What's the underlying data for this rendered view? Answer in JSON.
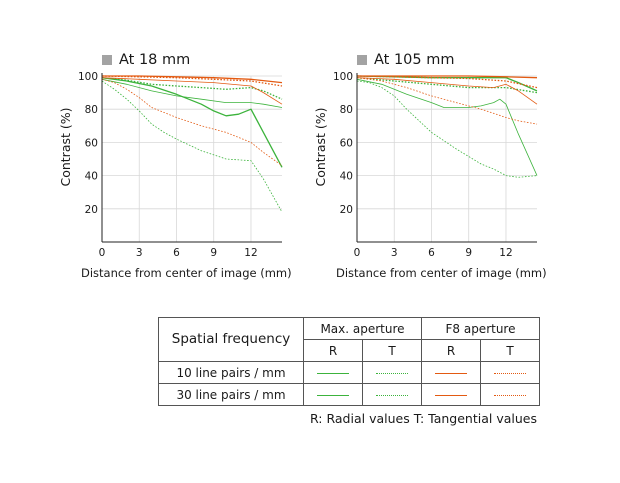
{
  "colors": {
    "max_aperture": "#3cb33c",
    "f8_aperture": "#e35a12",
    "axis": "#222222",
    "grid": "#d8d8d8",
    "title_square": "#a3a3a3"
  },
  "chart_data": [
    {
      "type": "line",
      "title": "At 18 mm",
      "xlabel": "Distance from center of image (mm)",
      "ylabel": "Contrast (%)",
      "xlim": [
        0,
        14.5
      ],
      "ylim": [
        0,
        100
      ],
      "xticks": [
        0,
        3,
        6,
        9,
        12
      ],
      "yticks": [
        20,
        40,
        60,
        80,
        100
      ],
      "grid": true,
      "series": [
        {
          "name": "Max. aperture 10 lp/mm R",
          "color": "#3cb33c",
          "dash": "solid",
          "width": 1.3,
          "x": [
            0,
            2,
            4,
            6,
            8,
            9,
            10,
            11,
            12,
            13,
            14.5
          ],
          "y": [
            99,
            97,
            94,
            89,
            83,
            79,
            76,
            77,
            80,
            66,
            45
          ]
        },
        {
          "name": "Max. aperture 10 lp/mm T",
          "color": "#3cb33c",
          "dash": "dotted",
          "width": 1.3,
          "x": [
            0,
            2,
            4,
            6,
            8,
            10,
            12,
            13,
            14.5
          ],
          "y": [
            99,
            97.5,
            95,
            94,
            93,
            92,
            93,
            91,
            86
          ]
        },
        {
          "name": "Max. aperture 30 lp/mm R",
          "color": "#3cb33c",
          "dash": "solid",
          "width": 0.8,
          "x": [
            0,
            2,
            4,
            6,
            8,
            10,
            12,
            13,
            14.5
          ],
          "y": [
            98,
            95,
            91,
            88,
            86,
            84,
            84,
            83,
            81
          ]
        },
        {
          "name": "Max. aperture 30 lp/mm T",
          "color": "#3cb33c",
          "dash": "dotted",
          "width": 0.8,
          "x": [
            0,
            1,
            2,
            3,
            4,
            5,
            6,
            8,
            10,
            12,
            13,
            14.5
          ],
          "y": [
            97,
            92,
            86,
            79,
            71,
            66,
            62,
            55,
            50,
            49,
            38,
            18
          ]
        },
        {
          "name": "F8 aperture 10 lp/mm R",
          "color": "#e35a12",
          "dash": "solid",
          "width": 1.3,
          "x": [
            0,
            3,
            6,
            9,
            12,
            14.5
          ],
          "y": [
            100,
            100,
            99.5,
            99,
            98,
            96
          ]
        },
        {
          "name": "F8 aperture 10 lp/mm T",
          "color": "#e35a12",
          "dash": "dotted",
          "width": 1.3,
          "x": [
            0,
            3,
            6,
            9,
            12,
            14.5
          ],
          "y": [
            100,
            99.5,
            99,
            98,
            97,
            94
          ]
        },
        {
          "name": "F8 aperture 30 lp/mm R",
          "color": "#e35a12",
          "dash": "solid",
          "width": 0.8,
          "x": [
            0,
            3,
            6,
            9,
            12,
            13,
            14.5
          ],
          "y": [
            99,
            98,
            97,
            96,
            94,
            90,
            83
          ]
        },
        {
          "name": "F8 aperture 30 lp/mm T",
          "color": "#e35a12",
          "dash": "dotted",
          "width": 0.8,
          "x": [
            0,
            1,
            2,
            3,
            4,
            6,
            8,
            10,
            12,
            13,
            14.5
          ],
          "y": [
            98,
            96,
            92,
            87,
            81,
            75,
            70,
            66,
            60,
            54,
            46
          ]
        }
      ]
    },
    {
      "type": "line",
      "title": "At 105 mm",
      "xlabel": "Distance from center of image (mm)",
      "ylabel": "Contrast (%)",
      "xlim": [
        0,
        14.5
      ],
      "ylim": [
        0,
        100
      ],
      "xticks": [
        0,
        3,
        6,
        9,
        12
      ],
      "yticks": [
        20,
        40,
        60,
        80,
        100
      ],
      "grid": true,
      "series": [
        {
          "name": "Max. aperture 10 lp/mm R",
          "color": "#3cb33c",
          "dash": "solid",
          "width": 1.3,
          "x": [
            0,
            3,
            6,
            9,
            11,
            12,
            13,
            14.5
          ],
          "y": [
            100,
            99.5,
            99,
            99,
            99,
            99,
            96,
            91
          ]
        },
        {
          "name": "Max. aperture 10 lp/mm T",
          "color": "#3cb33c",
          "dash": "dotted",
          "width": 1.3,
          "x": [
            0,
            3,
            6,
            9,
            12,
            14.5
          ],
          "y": [
            99,
            97,
            95,
            93,
            93,
            90
          ]
        },
        {
          "name": "Max. aperture 30 lp/mm R",
          "color": "#3cb33c",
          "dash": "solid",
          "width": 0.8,
          "x": [
            0,
            2,
            4,
            6,
            7,
            8,
            9,
            10,
            11,
            11.5,
            12,
            13,
            14.5
          ],
          "y": [
            98,
            95,
            89,
            84,
            81,
            81,
            81,
            82,
            84,
            86,
            83,
            65,
            40
          ]
        },
        {
          "name": "Max. aperture 30 lp/mm T",
          "color": "#3cb33c",
          "dash": "dotted",
          "width": 0.8,
          "x": [
            0,
            1,
            2,
            3,
            4,
            6,
            8,
            10,
            11,
            12,
            13,
            14.5
          ],
          "y": [
            97,
            96,
            93,
            88,
            80,
            66,
            56,
            47,
            44,
            40,
            39,
            40
          ]
        },
        {
          "name": "F8 aperture 10 lp/mm R",
          "color": "#e35a12",
          "dash": "solid",
          "width": 1.3,
          "x": [
            0,
            3,
            6,
            9,
            12,
            14.5
          ],
          "y": [
            100,
            100,
            100,
            100,
            99.5,
            99
          ]
        },
        {
          "name": "F8 aperture 10 lp/mm T",
          "color": "#e35a12",
          "dash": "dotted",
          "width": 1.3,
          "x": [
            0,
            3,
            6,
            9,
            12,
            14.5
          ],
          "y": [
            100,
            99.5,
            99,
            98.5,
            97,
            93
          ]
        },
        {
          "name": "F8 aperture 30 lp/mm R",
          "color": "#e35a12",
          "dash": "solid",
          "width": 0.8,
          "x": [
            0,
            3,
            6,
            9,
            11,
            12,
            13,
            14.5
          ],
          "y": [
            99,
            98,
            96,
            94,
            93,
            95,
            91,
            83
          ]
        },
        {
          "name": "F8 aperture 30 lp/mm T",
          "color": "#e35a12",
          "dash": "dotted",
          "width": 0.8,
          "x": [
            0,
            2,
            4,
            6,
            8,
            10,
            12,
            13,
            14.5
          ],
          "y": [
            99,
            97,
            93,
            88,
            84,
            80,
            75,
            73,
            71
          ]
        }
      ]
    }
  ],
  "legend_table": {
    "spatial_label": "Spatial frequency",
    "max_aperture_label": "Max. aperture",
    "f8_aperture_label": "F8 aperture",
    "r_label": "R",
    "t_label": "T",
    "row_10": "10 line pairs / mm",
    "row_30": "30 line pairs / mm"
  },
  "footnote": "R: Radial values  T: Tangential values"
}
